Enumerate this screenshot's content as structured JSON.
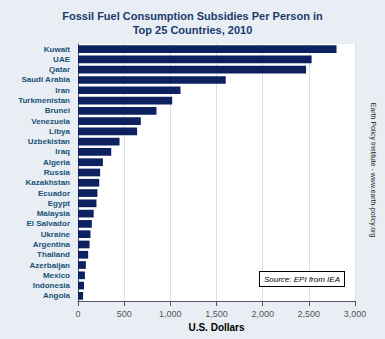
{
  "chart_data": {
    "type": "bar",
    "orientation": "horizontal",
    "title": "Fossil Fuel Consumption Subsidies Per Person in\nTop 25 Countries, 2010",
    "xlabel": "U.S. Dollars",
    "categories": [
      "Angola",
      "Indonesia",
      "Mexico",
      "Azerbaijan",
      "Thailand",
      "Argentina",
      "Ukraine",
      "El Salvador",
      "Malaysia",
      "Egypt",
      "Ecuador",
      "Kazakhstan",
      "Russia",
      "Algeria",
      "Iraq",
      "Uzbekistan",
      "Libya",
      "Venezuela",
      "Brunei",
      "Turkmenistan",
      "Iran",
      "Saudi Arabia",
      "Qatar",
      "UAE",
      "Kuwait"
    ],
    "values": [
      55,
      65,
      75,
      85,
      110,
      125,
      135,
      150,
      170,
      200,
      210,
      230,
      240,
      270,
      360,
      450,
      640,
      680,
      850,
      1020,
      1110,
      1600,
      2470,
      2530,
      2800
    ],
    "color": "#0d2060",
    "xlim": [
      0,
      3000
    ],
    "xticks": [
      0,
      500,
      {
        "value": 1000,
        "label": "1,000"
      },
      {
        "value": 1500,
        "label": "1,500"
      },
      {
        "value": 2000,
        "label": "2,000"
      },
      {
        "value": 2500,
        "label": "2,500"
      },
      {
        "value": 3000,
        "label": "3,000"
      }
    ],
    "grid": true,
    "annotations": [
      "Source: EPI from IEA",
      "Earth Policy Institute - www.earth-policy.org"
    ]
  }
}
